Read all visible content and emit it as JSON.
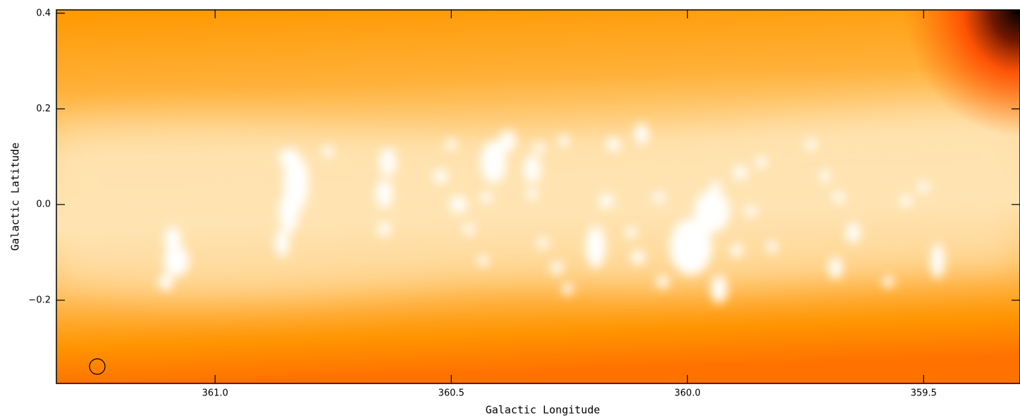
{
  "chart_data": {
    "type": "image",
    "xlabel": "Galactic Longitude",
    "ylabel": "Galactic Latitude",
    "xlim": [
      361.336,
      359.296
    ],
    "ylim": [
      -0.374,
      0.407
    ],
    "xticks": [
      {
        "value": 361,
        "label": "361.0"
      },
      360.5,
      {
        "value": 360,
        "label": "360.0"
      },
      359.5
    ],
    "yticks": [
      0.4,
      0.2,
      {
        "value": 0,
        "label": "0.0"
      },
      {
        "value": -0.2,
        "label": "−0.2"
      }
    ]
  }
}
